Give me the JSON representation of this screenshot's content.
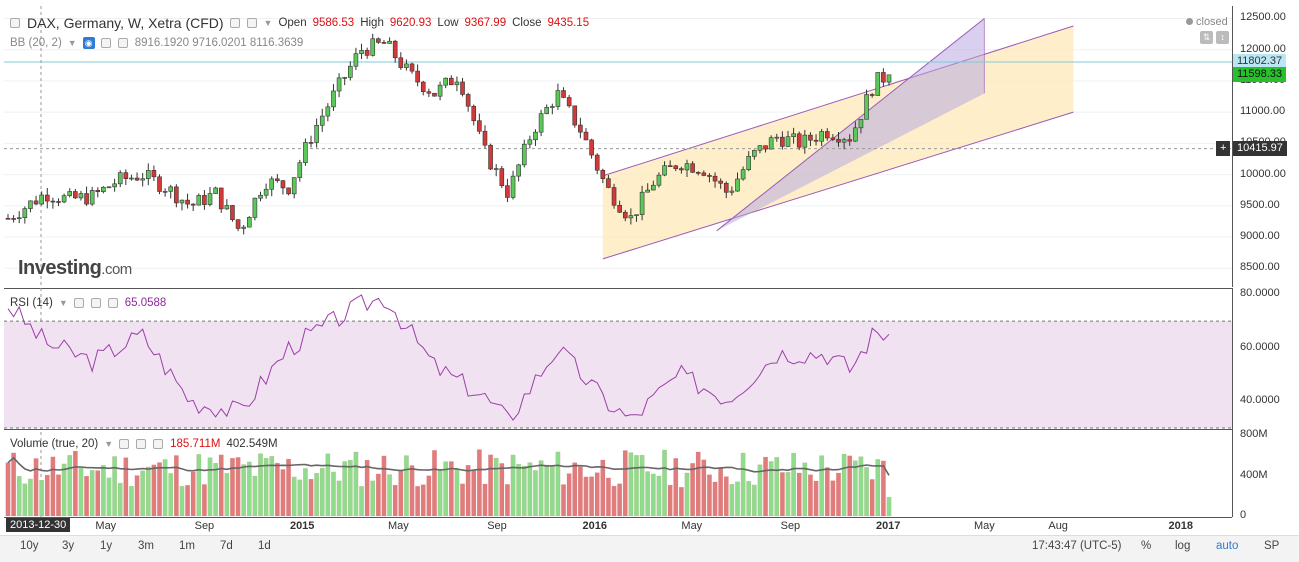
{
  "header": {
    "symbol": "DAX, Germany, W, Xetra (CFD)",
    "open_label": "Open",
    "open": "9586.53",
    "high_label": "High",
    "high": "9620.93",
    "low_label": "Low",
    "low": "9367.99",
    "close_label": "Close",
    "close": "9435.15",
    "status": "closed"
  },
  "bb_legend": {
    "name": "BB (20, 2)",
    "values": "8916.1920 9716.0201 8116.3639"
  },
  "rsi_legend": {
    "name": "RSI (14)",
    "value": "65.0588"
  },
  "volume_legend": {
    "name": "Volume (true, 20)",
    "value1": "185.711M",
    "value2": "402.549M"
  },
  "logo": {
    "main": "Investing",
    "suffix": ".com"
  },
  "price_axis": {
    "ticks": [
      "12500.00",
      "12000.00",
      "11500.00",
      "11000.00",
      "10500.00",
      "10000.00",
      "9500.00",
      "9000.00",
      "8500.00"
    ]
  },
  "price_tags": [
    {
      "text": "11802.37",
      "bg": "#b9e6f2",
      "color": "#333"
    },
    {
      "text": "11598.33",
      "bg": "#27c22b",
      "color": "#111"
    },
    {
      "text": "10415.97",
      "bg": "#333333",
      "color": "#ffffff"
    }
  ],
  "crosshair_plus": "+",
  "rsi_axis": {
    "ticks": [
      "80.0000",
      "60.0000",
      "40.0000"
    ]
  },
  "volume_axis": {
    "ticks": [
      "800M",
      "400M",
      "0"
    ]
  },
  "time_axis": {
    "start": "2013-12-30",
    "ticks": [
      {
        "label": "May",
        "bold": false
      },
      {
        "label": "Sep",
        "bold": false
      },
      {
        "label": "2015",
        "bold": true
      },
      {
        "label": "May",
        "bold": false
      },
      {
        "label": "Sep",
        "bold": false
      },
      {
        "label": "2016",
        "bold": true
      },
      {
        "label": "May",
        "bold": false
      },
      {
        "label": "Sep",
        "bold": false
      },
      {
        "label": "2017",
        "bold": true
      },
      {
        "label": "May",
        "bold": false
      },
      {
        "label": "Aug",
        "bold": false
      },
      {
        "label": "2018",
        "bold": true
      }
    ]
  },
  "toolbar": {
    "ranges": [
      "10y",
      "3y",
      "1y",
      "3m",
      "1m",
      "7d",
      "1d"
    ],
    "time": "17:43:47 (UTC-5)",
    "options": [
      "%",
      "log",
      "auto",
      "SP"
    ]
  },
  "colors": {
    "up": "#5cc85a",
    "down": "#d23a3a",
    "channel_fill": "#fde9b8",
    "channel_line": "#9b59b6",
    "rsi_band": "#f1e2f2",
    "rsi_line": "#9b3ea6",
    "vol_up": "#8fdc8c",
    "vol_down": "#e07c7c",
    "vol_ma": "#666666"
  },
  "chart_data": [
    {
      "type": "candlestick",
      "title": "DAX, Germany, W, Xetra (CFD)",
      "ylim": [
        8200,
        12700
      ],
      "x_range": [
        "2013-12-30",
        "2017-01-02"
      ],
      "ohlc_monthly_approx": [
        {
          "date": "2014-01",
          "close": 9300
        },
        {
          "date": "2014-02",
          "close": 9700
        },
        {
          "date": "2014-03",
          "close": 9600
        },
        {
          "date": "2014-04",
          "close": 9650
        },
        {
          "date": "2014-05",
          "close": 9900
        },
        {
          "date": "2014-06",
          "close": 10000
        },
        {
          "date": "2014-07",
          "close": 9800
        },
        {
          "date": "2014-08",
          "close": 9500
        },
        {
          "date": "2014-09",
          "close": 9700
        },
        {
          "date": "2014-10",
          "close": 9100
        },
        {
          "date": "2014-11",
          "close": 9900
        },
        {
          "date": "2014-12",
          "close": 9800
        },
        {
          "date": "2015-01",
          "close": 10700
        },
        {
          "date": "2015-02",
          "close": 11400
        },
        {
          "date": "2015-03",
          "close": 12000
        },
        {
          "date": "2015-04",
          "close": 12100
        },
        {
          "date": "2015-05",
          "close": 11600
        },
        {
          "date": "2015-06",
          "close": 11300
        },
        {
          "date": "2015-07",
          "close": 11600
        },
        {
          "date": "2015-08",
          "close": 10400
        },
        {
          "date": "2015-09",
          "close": 9700
        },
        {
          "date": "2015-10",
          "close": 10700
        },
        {
          "date": "2015-11",
          "close": 11300
        },
        {
          "date": "2015-12",
          "close": 10700
        },
        {
          "date": "2016-01",
          "close": 9800
        },
        {
          "date": "2016-02",
          "close": 9300
        },
        {
          "date": "2016-03",
          "close": 9900
        },
        {
          "date": "2016-04",
          "close": 10200
        },
        {
          "date": "2016-05",
          "close": 10100
        },
        {
          "date": "2016-06",
          "close": 9700
        },
        {
          "date": "2016-07",
          "close": 10300
        },
        {
          "date": "2016-08",
          "close": 10600
        },
        {
          "date": "2016-09",
          "close": 10500
        },
        {
          "date": "2016-10",
          "close": 10700
        },
        {
          "date": "2016-11",
          "close": 10600
        },
        {
          "date": "2016-12",
          "close": 11480
        },
        {
          "date": "2017-01",
          "close": 11598
        }
      ],
      "channel_lines": [
        {
          "name": "upper",
          "from": [
            "2016-01-11",
            9980
          ],
          "to": [
            "2017-08-20",
            12380
          ]
        },
        {
          "name": "lower",
          "from": [
            "2016-01-11",
            8650
          ],
          "to": [
            "2017-08-20",
            11000
          ]
        },
        {
          "name": "inner-upper",
          "from": [
            "2016-06-01",
            9100
          ],
          "to": [
            "2017-05-01",
            12500
          ]
        },
        {
          "name": "inner-lower",
          "from": [
            "2016-07-15",
            9200
          ],
          "to": [
            "2017-05-01",
            11300
          ]
        }
      ],
      "horizontal_lines": [
        {
          "value": 11802.37
        },
        {
          "value": 10415.97
        }
      ]
    },
    {
      "type": "line",
      "title": "RSI (14)",
      "ylim": [
        30,
        82
      ],
      "levels": [
        70,
        30
      ],
      "values_monthly_approx": [
        {
          "date": "2014-01",
          "value": 76
        },
        {
          "date": "2014-02",
          "value": 62
        },
        {
          "date": "2014-04",
          "value": 55
        },
        {
          "date": "2014-06",
          "value": 65
        },
        {
          "date": "2014-08",
          "value": 40
        },
        {
          "date": "2014-10",
          "value": 36
        },
        {
          "date": "2014-12",
          "value": 60
        },
        {
          "date": "2015-03",
          "value": 76
        },
        {
          "date": "2015-04",
          "value": 79
        },
        {
          "date": "2015-06",
          "value": 53
        },
        {
          "date": "2015-08",
          "value": 42
        },
        {
          "date": "2015-09",
          "value": 33
        },
        {
          "date": "2015-11",
          "value": 60
        },
        {
          "date": "2016-01",
          "value": 40
        },
        {
          "date": "2016-02",
          "value": 33
        },
        {
          "date": "2016-04",
          "value": 50
        },
        {
          "date": "2016-06",
          "value": 41
        },
        {
          "date": "2016-08",
          "value": 58
        },
        {
          "date": "2016-10",
          "value": 58
        },
        {
          "date": "2016-11",
          "value": 52
        },
        {
          "date": "2016-12",
          "value": 66
        },
        {
          "date": "2017-01",
          "value": 65.06
        }
      ]
    },
    {
      "type": "bar",
      "title": "Volume (true, 20)",
      "ylim": [
        0,
        850
      ],
      "unit": "M",
      "last_volume": 185.711,
      "volume_ma": 402.549
    }
  ]
}
